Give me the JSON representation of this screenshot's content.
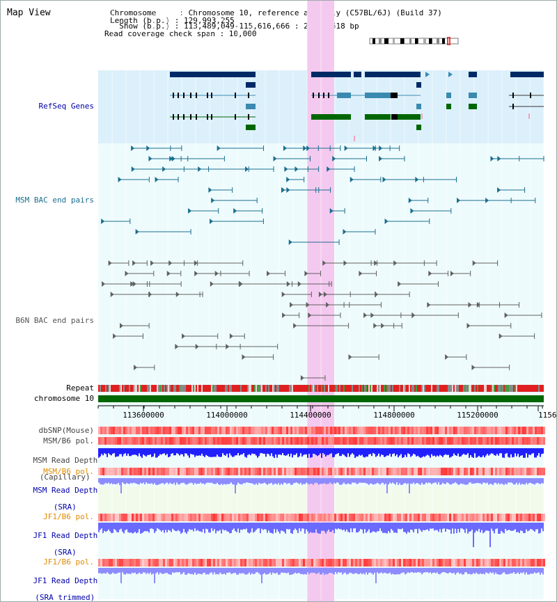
{
  "view": {
    "title": "Map View",
    "info_lines": [
      "Chromosome     : Chromosome 10, reference assembly (C57BL/6J) (Build 37)",
      "Length (b.p.) : 129,993,255",
      "  Show (b.p.) : 113,489,049-115,616,666 : 2,127,618 bp",
      "Read coverage check span : 10,000"
    ]
  },
  "tracks": {
    "refseq": "RefSeq Genes",
    "msm_bac": "MSM BAC end pairs",
    "b6n_bac": "B6N BAC end pairs",
    "repeat": "Repeat",
    "chromosome": "chromosome 10",
    "dbsnp": "dbSNP(Mouse)",
    "msm_pol": "MSM/B6 pol.",
    "msm_depth_cap_1": "MSM Read Depth",
    "msm_depth_cap_2": "(Capillary)",
    "msm_pol_2": "MSM/B6 pol.",
    "msm_depth_sra_1": "MSM Read Depth",
    "msm_depth_sra_2": "(SRA)",
    "jf1_pol": "JF1/B6 pol.",
    "jf1_depth_sra_1": "JF1 Read Depth",
    "jf1_depth_sra_2": "(SRA)",
    "jf1_pol_2": "JF1/B6 pol.",
    "jf1_depth_trim_1": "JF1 Read Depth",
    "jf1_depth_trim_2": "(SRA trimmed)"
  },
  "axis": {
    "ticks": [
      "113600000",
      "114000000",
      "114400000",
      "114800000",
      "115200000",
      "1156"
    ]
  },
  "colors": {
    "gene_dark": "#002a66",
    "gene_teal": "#3a8ab0",
    "gene_green": "#006600",
    "msm_pair": "#1a6e8e",
    "b6n_pair": "#606060",
    "highlight": "#f4c9ef",
    "depth_blue": "#2020ff",
    "depth_light": "#8c8cff"
  }
}
